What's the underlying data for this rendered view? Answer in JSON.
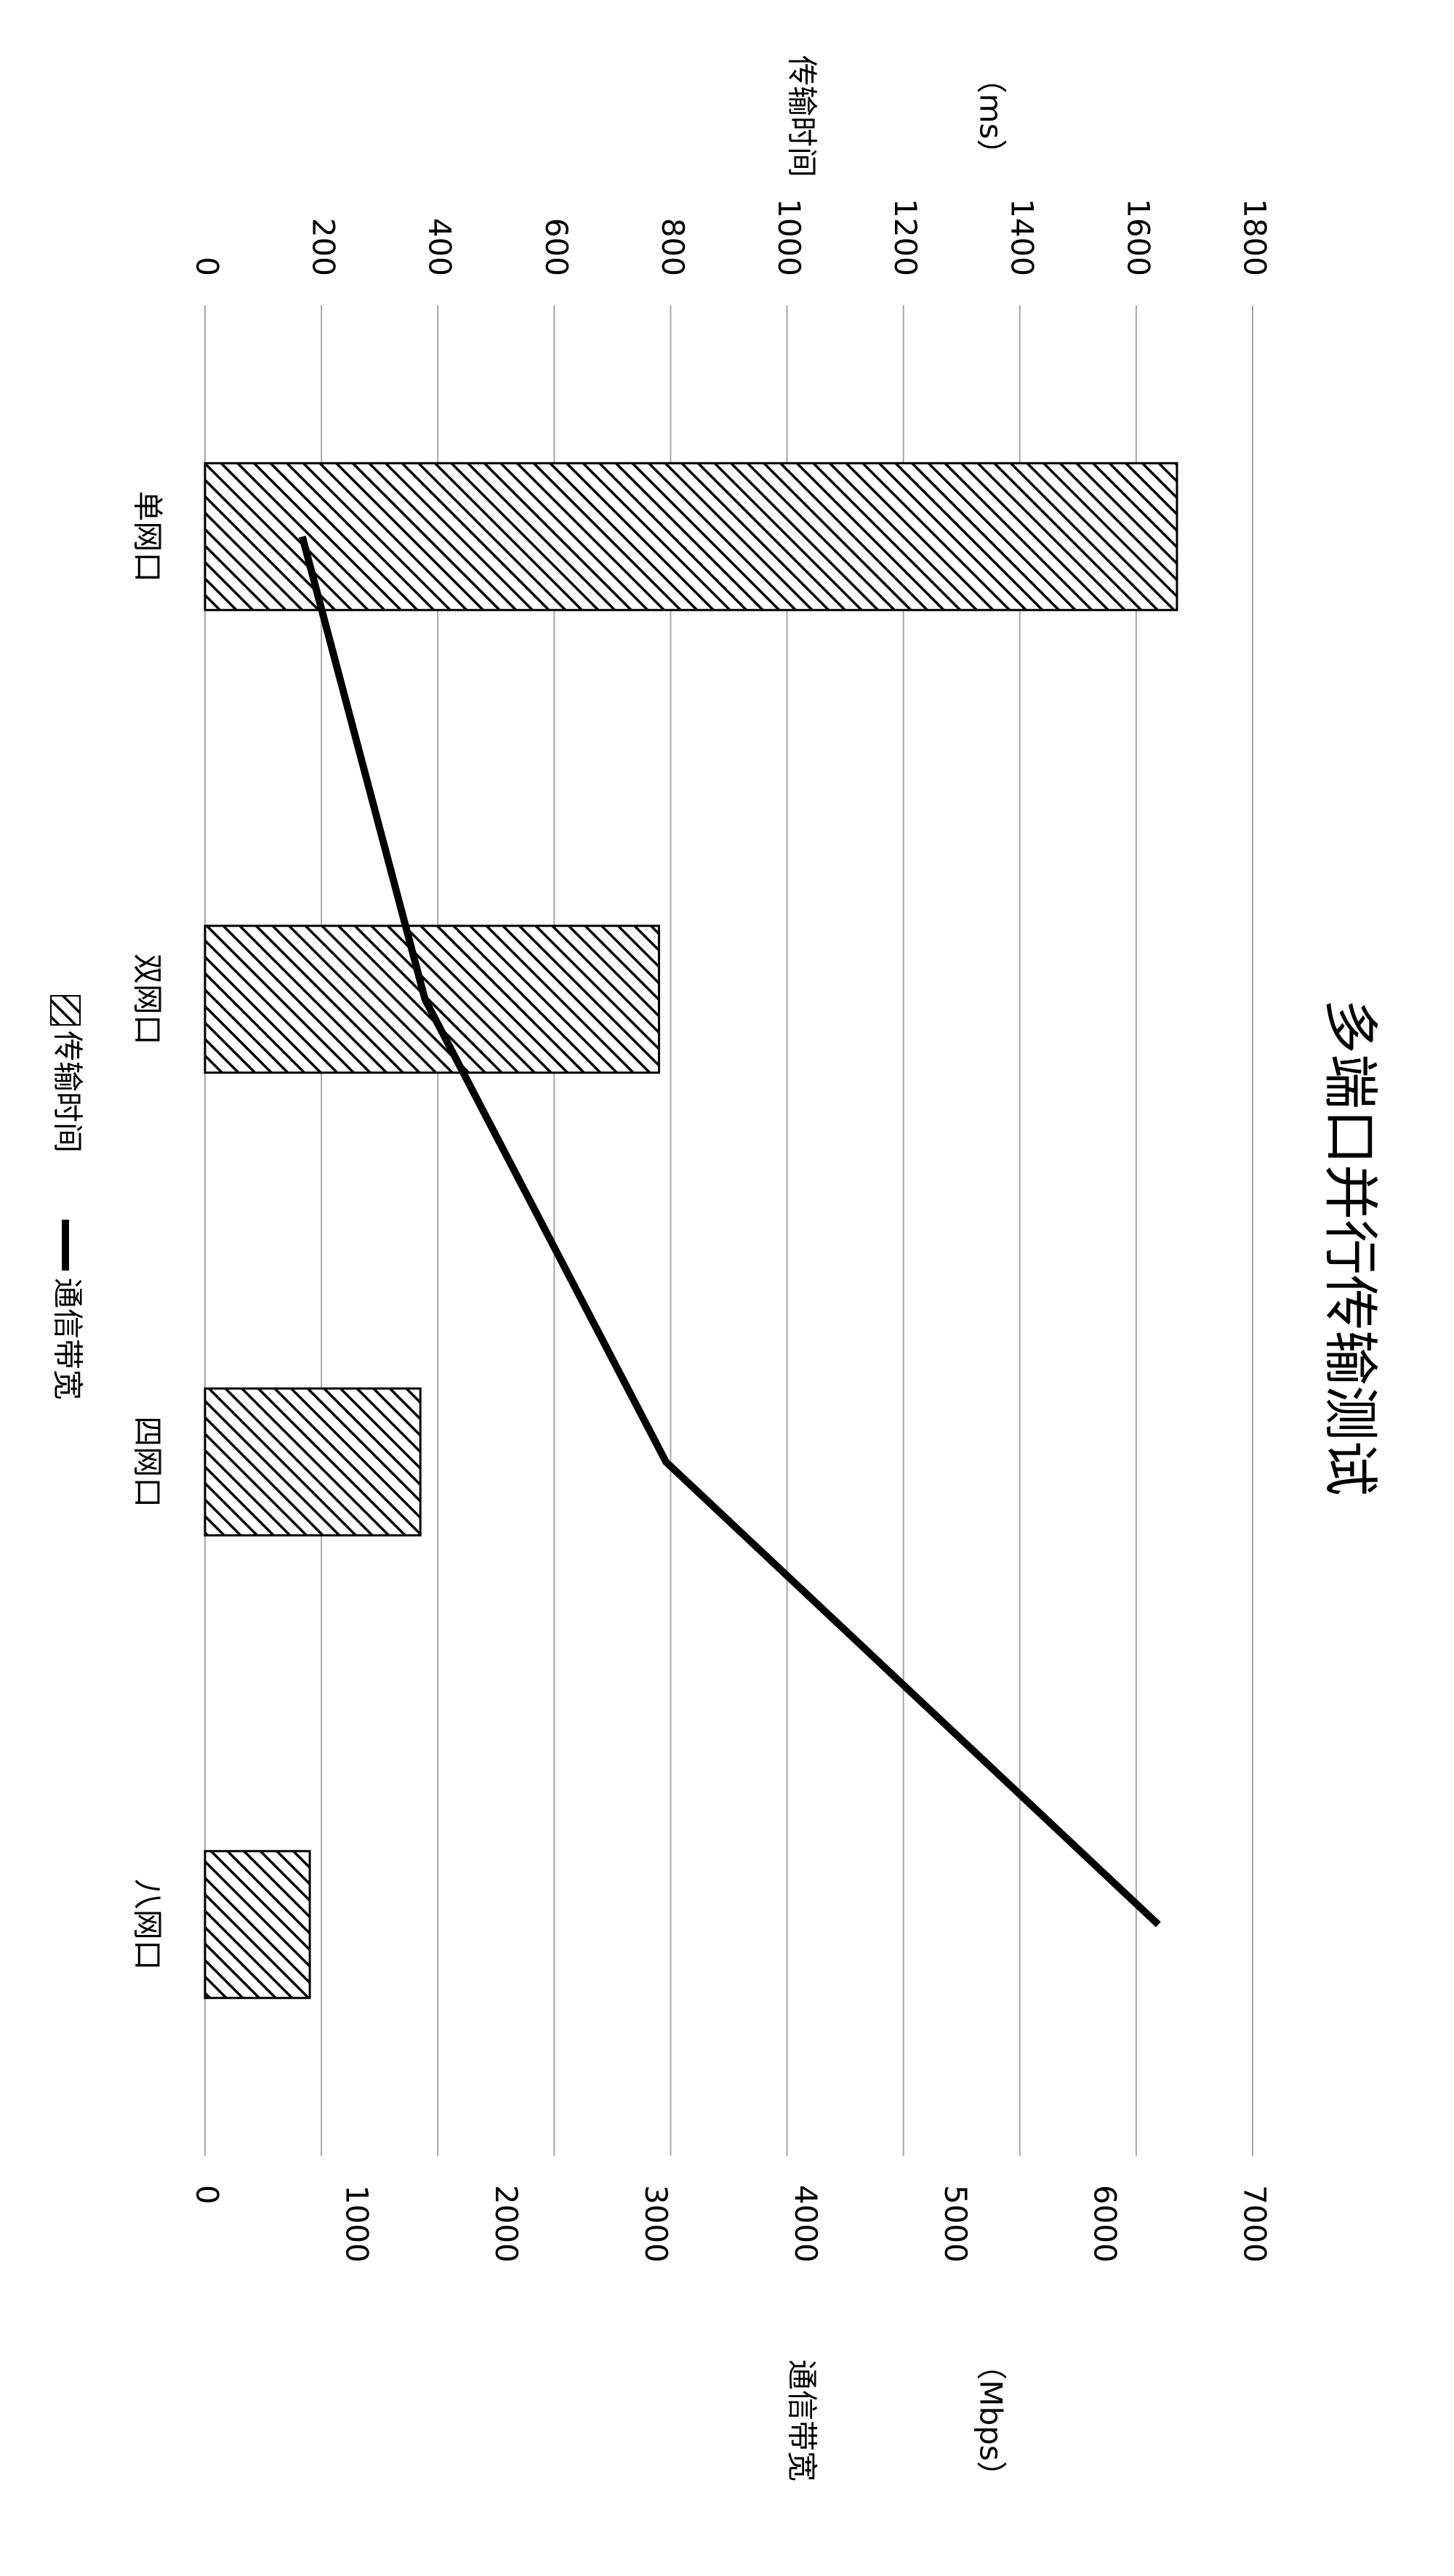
{
  "chart_data": {
    "type": "bar",
    "title": "多端口并行传输测试",
    "categories": [
      "单网口",
      "双网口",
      "四网口",
      "八网口"
    ],
    "series": [
      {
        "name": "传输时间",
        "type": "bar",
        "axis": "y",
        "color": "#000000",
        "pattern": "hatch",
        "values": [
          1670,
          780,
          370,
          180
        ]
      },
      {
        "name": "通信带宽",
        "type": "line",
        "axis": "y2",
        "color": "#000000",
        "values": [
          650,
          1470,
          3080,
          6370
        ]
      }
    ],
    "ylabel": "传输时间",
    "yunit": "（ms）",
    "y2label": "通信带宽",
    "y2unit": "（Mbps）",
    "ylim": [
      0,
      1800
    ],
    "yticks": [
      0,
      200,
      400,
      600,
      800,
      1000,
      1200,
      1400,
      1600,
      1800
    ],
    "y2lim": [
      0,
      7000
    ],
    "y2ticks": [
      0,
      1000,
      2000,
      3000,
      4000,
      5000,
      6000,
      7000
    ],
    "grid": true,
    "legend": "bottom",
    "rotation": 90
  }
}
